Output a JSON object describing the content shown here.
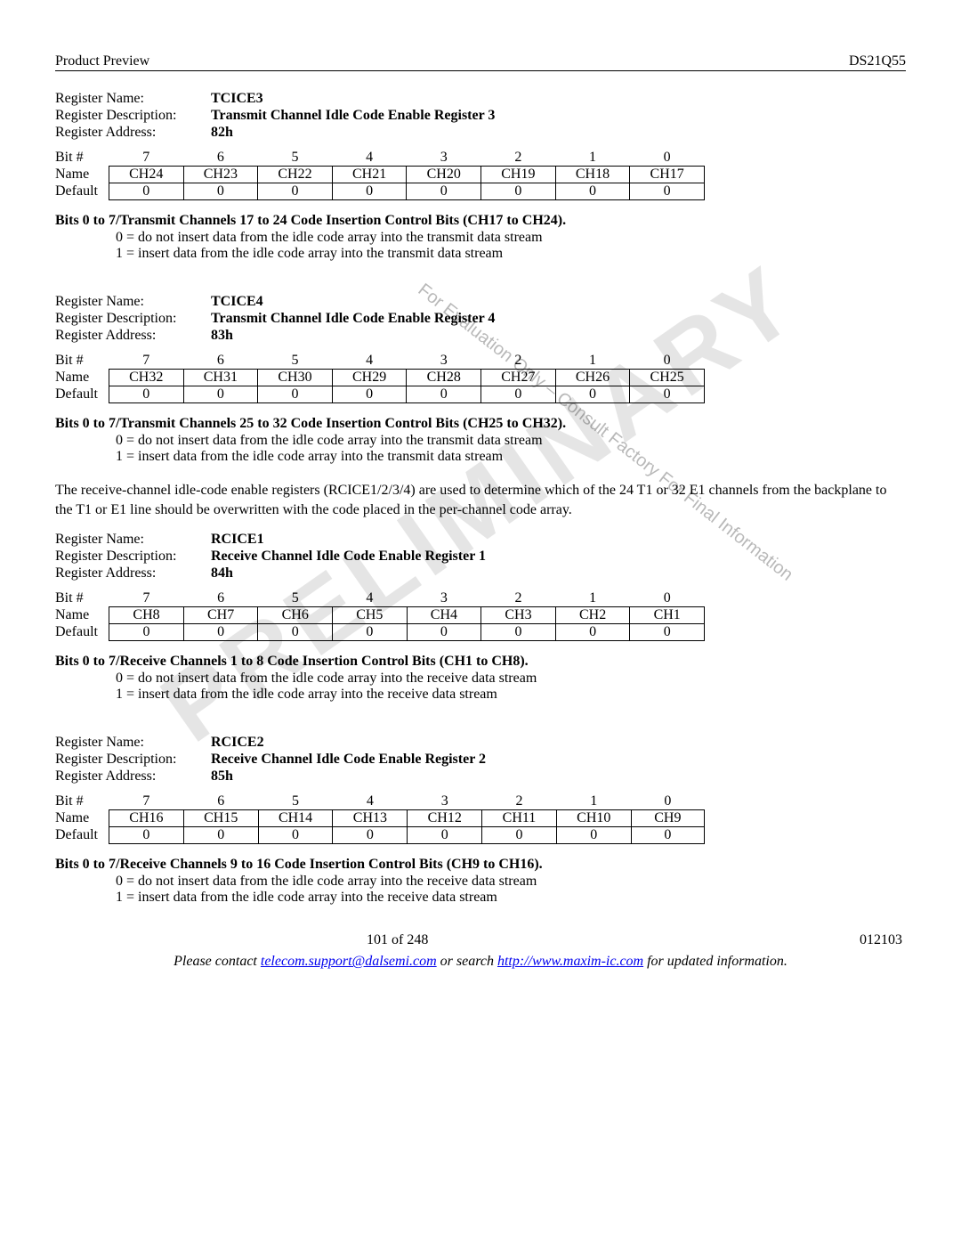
{
  "header": {
    "left": "Product Preview",
    "right": "DS21Q55"
  },
  "watermark": {
    "main": "PRELIMINARY",
    "sub": "For Evaluation Only – Consult Factory For Final Information"
  },
  "registers": [
    {
      "name": "TCICE3",
      "description": "Transmit Channel Idle Code  Enable Register 3",
      "address": "82h",
      "bits": [
        "7",
        "6",
        "5",
        "4",
        "3",
        "2",
        "1",
        "0"
      ],
      "names": [
        "CH24",
        "CH23",
        "CH22",
        "CH21",
        "CH20",
        "CH19",
        "CH18",
        "CH17"
      ],
      "defaults": [
        "0",
        "0",
        "0",
        "0",
        "0",
        "0",
        "0",
        "0"
      ],
      "desc_title": "Bits 0 to 7/Transmit Channels 17 to 24 Code Insertion Control Bits (CH17 to CH24).",
      "desc0": "0 = do not insert data from the idle code array into the transmit data stream",
      "desc1": "1 = insert data from the idle code array into the transmit data stream"
    },
    {
      "name": "TCICE4",
      "description": "Transmit Channel Idle Code Enable Register 4",
      "address": "83h",
      "bits": [
        "7",
        "6",
        "5",
        "4",
        "3",
        "2",
        "1",
        "0"
      ],
      "names": [
        "CH32",
        "CH31",
        "CH30",
        "CH29",
        "CH28",
        "CH27",
        "CH26",
        "CH25"
      ],
      "defaults": [
        "0",
        "0",
        "0",
        "0",
        "0",
        "0",
        "0",
        "0"
      ],
      "desc_title": "Bits 0 to 7/Transmit Channels 25 to 32 Code Insertion Control Bits (CH25 to CH32).",
      "desc0": "0 = do not insert data from the idle code array into the transmit data stream",
      "desc1": "1 = insert data from the idle code array into the transmit data stream"
    },
    {
      "name": "RCICE1",
      "description": "Receive Channel Idle Code Enable Register 1",
      "address": "84h",
      "bits": [
        "7",
        "6",
        "5",
        "4",
        "3",
        "2",
        "1",
        "0"
      ],
      "names": [
        "CH8",
        "CH7",
        "CH6",
        "CH5",
        "CH4",
        "CH3",
        "CH2",
        "CH1"
      ],
      "defaults": [
        "0",
        "0",
        "0",
        "0",
        "0",
        "0",
        "0",
        "0"
      ],
      "desc_title": "Bits 0 to 7/Receive Channels 1 to 8 Code Insertion Control Bits (CH1 to CH8).",
      "desc0": "0 = do not insert data from the idle code array into the receive data stream",
      "desc1": "1 = insert data from the idle code array into the receive data stream"
    },
    {
      "name": "RCICE2",
      "description": "Receive Channel Idle Code Enable Register 2",
      "address": "85h",
      "bits": [
        "7",
        "6",
        "5",
        "4",
        "3",
        "2",
        "1",
        "0"
      ],
      "names": [
        "CH16",
        "CH15",
        "CH14",
        "CH13",
        "CH12",
        "CH11",
        "CH10",
        "CH9"
      ],
      "defaults": [
        "0",
        "0",
        "0",
        "0",
        "0",
        "0",
        "0",
        "0"
      ],
      "desc_title": "Bits 0 to 7/Receive Channels 9 to 16 Code Insertion Control Bits (CH9 to CH16).",
      "desc0": "0 = do not insert data from the idle code array into the receive data stream",
      "desc1": "1 = insert data from the idle code array into the receive data stream"
    }
  ],
  "paragraph": "The receive-channel idle-code enable registers (RCICE1/2/3/4) are used to determine which of the 24 T1 or 32 E1 channels from the backplane to the T1 or E1 line should be overwritten with the code placed in the per-channel code array.",
  "labels": {
    "reg_name": "Register Name:",
    "reg_desc": "Register Description:",
    "reg_addr": "Register Address:",
    "bitnum": "Bit #",
    "name": "Name",
    "default": "Default"
  },
  "footer": {
    "page": "101 of 248",
    "date": "012103",
    "contact_prefix": "Please contact ",
    "email": "telecom.support@dalsemi.com",
    "contact_mid": " or search ",
    "url": "http://www.maxim-ic.com",
    "contact_suffix": " for updated information."
  }
}
